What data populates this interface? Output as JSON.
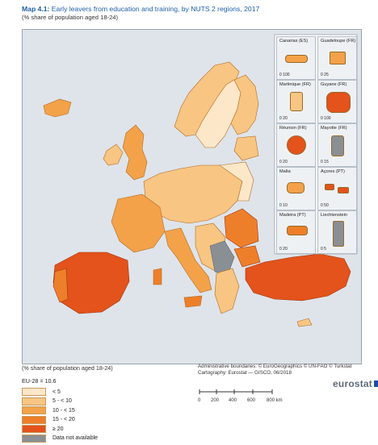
{
  "title": {
    "number": "Map 4.1:",
    "text": "Early leavers from education and training, by NUTS 2 regions, 2017"
  },
  "subtitle": "(% share of population aged 18-24)",
  "footer": {
    "left": "(% share of population aged 18-24)",
    "admin": "Administrative boundaries: © EuroGeographics © UN-FAO © Turkstat",
    "carto": "Cartography: Eurostat — GISCO, 06/2018"
  },
  "legend": {
    "eu": "EU-28 = 10.6",
    "items": [
      {
        "label": "< 5",
        "color": "#fde7c9"
      },
      {
        "label": "5 - < 10",
        "color": "#f8c583"
      },
      {
        "label": "10 - < 15",
        "color": "#f3a24a"
      },
      {
        "label": "15 - < 20",
        "color": "#ee7f2a"
      },
      {
        "label": "≥ 20",
        "color": "#e3531b"
      },
      {
        "label": "Data not available",
        "color": "#8a8f94"
      }
    ]
  },
  "scale": {
    "ticks": [
      "0",
      "200",
      "400",
      "600",
      "800 km"
    ]
  },
  "brand": {
    "word": "eurostat"
  },
  "insets": [
    {
      "name": "Canarias (ES)",
      "scale": "100",
      "fill": "#f3a24a"
    },
    {
      "name": "Guadeloupe (FR)",
      "scale": "25",
      "fill": "#f3a24a"
    },
    {
      "name": "Martinique (FR)",
      "scale": "20",
      "fill": "#f8c583"
    },
    {
      "name": "Guyane (FR)",
      "scale": "100",
      "fill": "#e3531b"
    },
    {
      "name": "Réunion (FR)",
      "scale": "20",
      "fill": "#e3531b"
    },
    {
      "name": "Mayotte (FR)",
      "scale": "15",
      "fill": "#8a8f94"
    },
    {
      "name": "Malta",
      "scale": "10",
      "fill": "#f3a24a"
    },
    {
      "name": "Açores (PT)",
      "scale": "50",
      "fill": "#e3531b"
    },
    {
      "name": "Madeira (PT)",
      "scale": "20",
      "fill": "#ee7f2a"
    },
    {
      "name": "Liechtenstein",
      "scale": "5",
      "fill": "#8a8f94"
    }
  ]
}
